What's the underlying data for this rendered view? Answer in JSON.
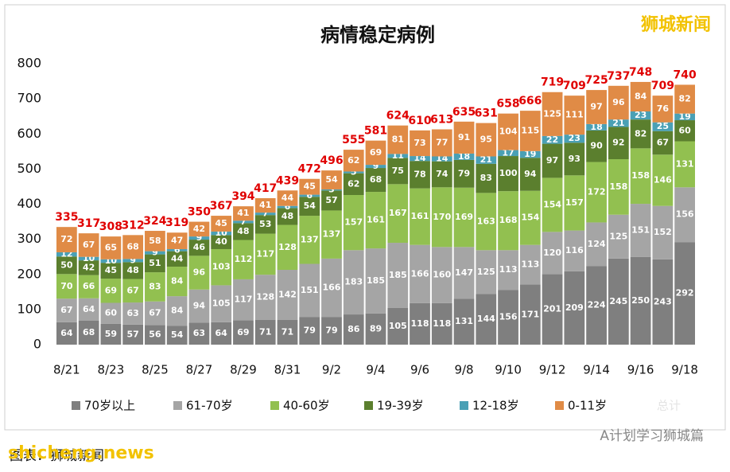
{
  "chart_data": {
    "type": "stacked_bar",
    "title": "病情稳定病例",
    "categories": [
      "8/21",
      null,
      "8/23",
      null,
      "8/25",
      null,
      "8/27",
      null,
      "8/29",
      null,
      "8/31",
      null,
      "9/2",
      null,
      "9/4",
      null,
      "9/6",
      null,
      "9/8",
      null,
      "9/10",
      null,
      "9/12",
      null,
      "9/14",
      null,
      "9/16",
      null,
      "9/18"
    ],
    "series": [
      {
        "name": "70岁以上",
        "color": "#7f7f7f",
        "values": [
          64,
          68,
          59,
          57,
          56,
          54,
          63,
          64,
          69,
          71,
          71,
          79,
          79,
          86,
          89,
          105,
          118,
          118,
          131,
          144,
          156,
          171,
          201,
          209,
          224,
          245,
          250,
          243,
          292
        ]
      },
      {
        "name": "61-70岁",
        "color": "#a5a5a5",
        "values": [
          67,
          64,
          60,
          63,
          67,
          84,
          94,
          105,
          117,
          128,
          142,
          151,
          166,
          183,
          185,
          185,
          166,
          160,
          147,
          125,
          113,
          113,
          120,
          116,
          124,
          125,
          151,
          152,
          156
        ]
      },
      {
        "name": "40-60岁",
        "color": "#92c050",
        "values": [
          70,
          66,
          69,
          67,
          83,
          84,
          96,
          103,
          112,
          117,
          128,
          137,
          137,
          157,
          161,
          167,
          161,
          170,
          169,
          163,
          168,
          154,
          154,
          157,
          172,
          158,
          158,
          146,
          131
        ]
      },
      {
        "name": "19-39岁",
        "color": "#5b7f2e",
        "values": [
          50,
          42,
          45,
          48,
          51,
          44,
          46,
          40,
          48,
          53,
          48,
          54,
          57,
          62,
          68,
          75,
          78,
          74,
          79,
          83,
          100,
          94,
          97,
          93,
          90,
          92,
          82,
          67,
          60
        ]
      },
      {
        "name": "12-18岁",
        "color": "#4aa0b5",
        "values": [
          12,
          10,
          10,
          9,
          9,
          6,
          9,
          10,
          7,
          7,
          6,
          6,
          3,
          5,
          9,
          11,
          14,
          14,
          18,
          21,
          17,
          19,
          22,
          23,
          18,
          21,
          23,
          25,
          19
        ]
      },
      {
        "name": "0-11岁",
        "color": "#e08b46",
        "values": [
          72,
          67,
          65,
          68,
          58,
          47,
          42,
          45,
          41,
          41,
          44,
          45,
          54,
          62,
          69,
          81,
          73,
          77,
          91,
          95,
          104,
          115,
          125,
          111,
          97,
          96,
          84,
          76,
          82
        ]
      }
    ],
    "totals_name": "总计",
    "totals": [
      335,
      317,
      308,
      312,
      324,
      319,
      350,
      367,
      394,
      417,
      439,
      472,
      496,
      555,
      581,
      624,
      610,
      613,
      635,
      631,
      658,
      666,
      719,
      709,
      725,
      737,
      748,
      709,
      740
    ],
    "ylim": [
      0,
      800
    ],
    "yticks": [
      0,
      100,
      200,
      300,
      400,
      500,
      600,
      700,
      800
    ],
    "grid": false,
    "annotations": [
      "狮城新闻",
      "shicheng.news",
      "图表：狮城新闻",
      "A计划学习狮城篇"
    ]
  }
}
